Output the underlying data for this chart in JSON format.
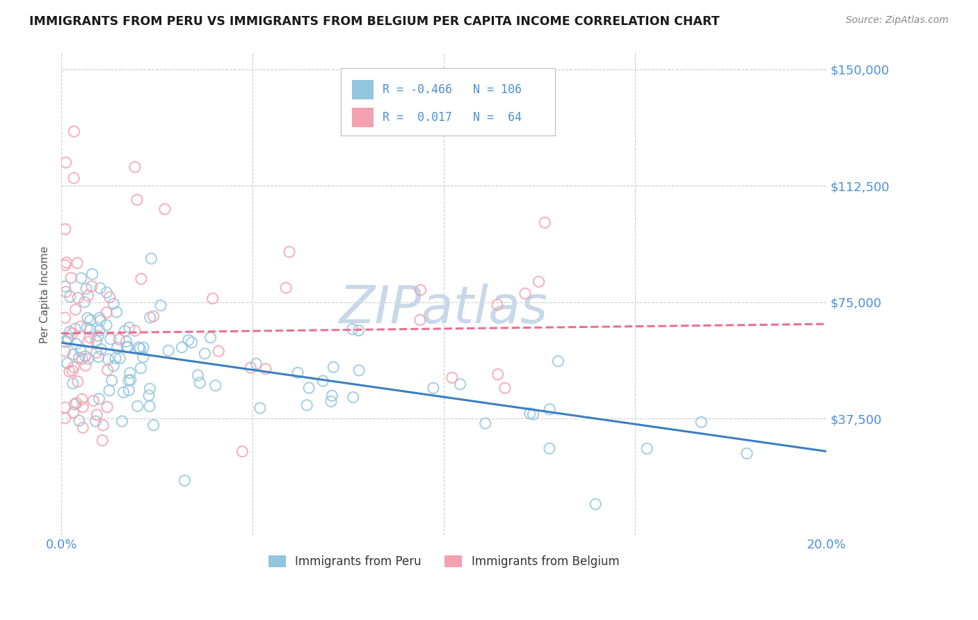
{
  "title": "IMMIGRANTS FROM PERU VS IMMIGRANTS FROM BELGIUM PER CAPITA INCOME CORRELATION CHART",
  "source": "Source: ZipAtlas.com",
  "ylabel": "Per Capita Income",
  "xlim": [
    0.0,
    0.2
  ],
  "ylim": [
    0,
    155000
  ],
  "yticks": [
    0,
    37500,
    75000,
    112500,
    150000
  ],
  "ytick_labels": [
    "",
    "$37,500",
    "$75,000",
    "$112,500",
    "$150,000"
  ],
  "xticks": [
    0.0,
    0.05,
    0.1,
    0.15,
    0.2
  ],
  "legend1_R": "-0.466",
  "legend1_N": "106",
  "legend2_R": "0.017",
  "legend2_N": "64",
  "peru_color": "#92C5DE",
  "belgium_color": "#F4A0B0",
  "peru_line_color": "#3A7FC1",
  "belgium_line_color": "#E87090",
  "watermark": "ZIPatlas",
  "watermark_color": "#C8D8E8",
  "title_color": "#1a1a1a",
  "axis_label_color": "#4A90D9",
  "legend_text_color": "#4A90D9",
  "background_color": "#ffffff",
  "grid_color": "#cccccc",
  "peru_trend_x": [
    0.0,
    0.2
  ],
  "peru_trend_y": [
    62000,
    27000
  ],
  "belgium_trend_x": [
    0.0,
    0.2
  ],
  "belgium_trend_y": [
    65000,
    68000
  ]
}
